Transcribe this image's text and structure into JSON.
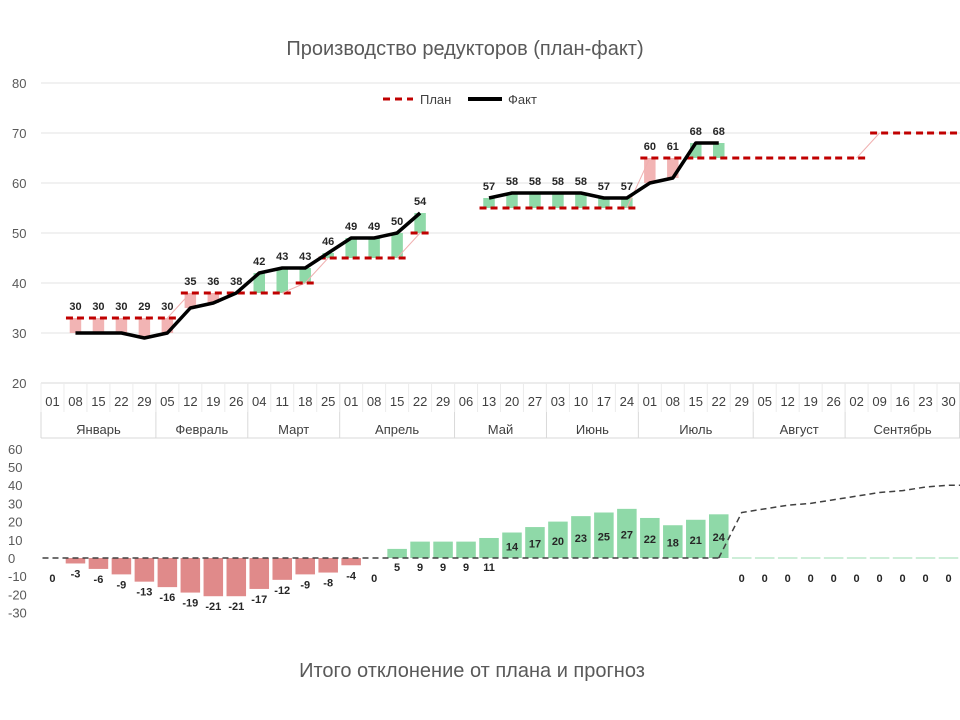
{
  "chart_data": [
    {
      "type": "line",
      "title": "Производство редукторов (план-факт)",
      "ylim": [
        20,
        80
      ],
      "yticks": [
        "20",
        "30",
        "40",
        "50",
        "60",
        "70",
        "80"
      ],
      "grid": true,
      "legend": {
        "position": "top",
        "entries": [
          "План",
          "Факт"
        ]
      },
      "x": [
        "01",
        "08",
        "15",
        "22",
        "29",
        "05",
        "12",
        "19",
        "26",
        "04",
        "11",
        "18",
        "25",
        "01",
        "08",
        "15",
        "22",
        "29",
        "06",
        "13",
        "20",
        "27",
        "03",
        "10",
        "17",
        "24",
        "01",
        "08",
        "15",
        "22",
        "29",
        "05",
        "12",
        "19",
        "26",
        "02",
        "09",
        "16",
        "23",
        "30"
      ],
      "months": [
        {
          "label": "Январь",
          "span": 5
        },
        {
          "label": "Февраль",
          "span": 4
        },
        {
          "label": "Март",
          "span": 4
        },
        {
          "label": "Апрель",
          "span": 5
        },
        {
          "label": "Май",
          "span": 4
        },
        {
          "label": "Июнь",
          "span": 4
        },
        {
          "label": "Июль",
          "span": 5
        },
        {
          "label": "Август",
          "span": 4
        },
        {
          "label": "Сентябрь",
          "span": 5
        }
      ],
      "series": [
        {
          "name": "План",
          "style": "dashed",
          "color": "#c00000",
          "values": [
            null,
            33,
            33,
            33,
            33,
            33,
            38,
            38,
            38,
            38,
            38,
            40,
            45,
            45,
            45,
            45,
            50,
            null,
            null,
            55,
            55,
            55,
            55,
            55,
            55,
            55,
            65,
            65,
            65,
            65,
            65,
            65,
            65,
            65,
            65,
            65,
            70,
            70,
            70,
            70
          ]
        },
        {
          "name": "Факт",
          "style": "solid",
          "color": "#000000",
          "values": [
            null,
            30,
            30,
            30,
            29,
            30,
            35,
            36,
            38,
            42,
            43,
            43,
            46,
            49,
            49,
            50,
            54,
            null,
            null,
            57,
            58,
            58,
            58,
            58,
            57,
            57,
            60,
            61,
            68,
            68,
            null,
            null,
            null,
            null,
            null,
            null,
            null,
            null,
            null,
            null
          ]
        }
      ],
      "fact_labels": [
        null,
        "30",
        "30",
        "30",
        "29",
        "30",
        "35",
        "36",
        "38",
        "42",
        "43",
        "43",
        "46",
        "49",
        "49",
        "50",
        "54",
        null,
        null,
        "57",
        "58",
        "58",
        "58",
        "58",
        "57",
        "57",
        "60",
        "61",
        "68",
        "68",
        null,
        null,
        null,
        null,
        null,
        null,
        null,
        null,
        null,
        null
      ]
    },
    {
      "type": "bar",
      "title": "Итого отклонение от плана и прогноз",
      "ylim": [
        -30,
        60
      ],
      "yticks": [
        "-30",
        "-20",
        "-10",
        "0",
        "10",
        "20",
        "30",
        "40",
        "50",
        "60"
      ],
      "values": [
        0,
        -3,
        -6,
        -9,
        -13,
        -16,
        -19,
        -21,
        -21,
        -17,
        -12,
        -9,
        -8,
        -4,
        0,
        5,
        9,
        9,
        9,
        11,
        14,
        17,
        20,
        23,
        25,
        27,
        22,
        18,
        21,
        24,
        0,
        0,
        0,
        0,
        0,
        0,
        0,
        0,
        0,
        0
      ],
      "labels": [
        "0",
        "-3",
        "-6",
        "-9",
        "-13",
        "-16",
        "-19",
        "-21",
        "-21",
        "-17",
        "-12",
        "-9",
        "-8",
        "-4",
        "0",
        "5",
        "9",
        "9",
        "9",
        "11",
        "14",
        "17",
        "20",
        "23",
        "25",
        "27",
        "22",
        "18",
        "21",
        "24",
        "0",
        "0",
        "0",
        "0",
        "0",
        "0",
        "0",
        "0",
        "0",
        "0"
      ],
      "forecast": [
        null,
        null,
        null,
        null,
        null,
        null,
        null,
        null,
        null,
        null,
        null,
        null,
        null,
        null,
        null,
        null,
        null,
        null,
        null,
        null,
        null,
        null,
        null,
        null,
        null,
        null,
        null,
        null,
        null,
        0,
        25,
        27,
        29,
        30,
        32,
        34,
        36,
        37,
        39,
        40
      ],
      "colors": {
        "negative": "#e08a8a",
        "positive": "#8fd9a8",
        "zero_line": "#404040",
        "forecast_line": "#404040"
      }
    }
  ]
}
